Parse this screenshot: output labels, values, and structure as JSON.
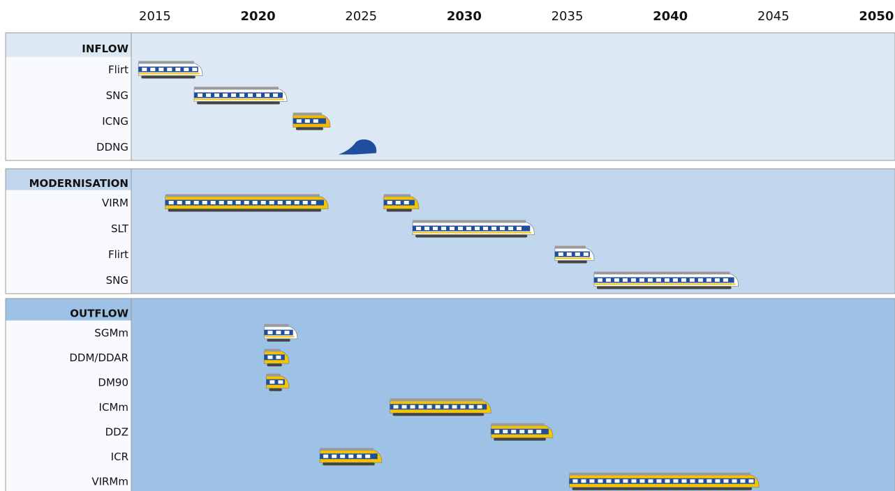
{
  "chart_data": {
    "type": "gantt",
    "xlim": [
      2013.85,
      2050.9
    ],
    "xticks": [
      2015,
      2020,
      2025,
      2030,
      2035,
      2040,
      2045,
      2050
    ],
    "sections": [
      {
        "name": "INFLOW",
        "color": "#dde8f5",
        "rows": [
          {
            "label": "Flirt",
            "color": "#ffffff",
            "bars": [
              {
                "start": 2014.2,
                "end": 2017.3
              }
            ]
          },
          {
            "label": "SNG",
            "color": "#ffffff",
            "bars": [
              {
                "start": 2016.9,
                "end": 2021.4
              }
            ]
          },
          {
            "label": "ICNG",
            "color": "#f5b800",
            "bars": [
              {
                "start": 2021.7,
                "end": 2023.5
              }
            ]
          },
          {
            "label": "DDNG",
            "color": "#1f4e9c",
            "bars": [
              {
                "start": 2023.9,
                "end": 2025.8
              }
            ]
          }
        ]
      },
      {
        "name": "MODERNISATION",
        "color": "#c0d7ee",
        "rows": [
          {
            "label": "VIRM",
            "color": "#f5c400",
            "bars": [
              {
                "start": 2015.5,
                "end": 2023.4
              },
              {
                "start": 2026.1,
                "end": 2027.8
              }
            ]
          },
          {
            "label": "SLT",
            "color": "#ffffff",
            "bars": [
              {
                "start": 2027.5,
                "end": 2033.4
              }
            ]
          },
          {
            "label": "Flirt",
            "color": "#ffffff",
            "bars": [
              {
                "start": 2034.4,
                "end": 2036.3
              }
            ]
          },
          {
            "label": "SNG",
            "color": "#ffffff",
            "bars": [
              {
                "start": 2036.3,
                "end": 2043.3
              }
            ]
          }
        ]
      },
      {
        "name": "OUTFLOW",
        "color": "#9dc2e5",
        "rows": [
          {
            "label": "SGMm",
            "color": "#ffffff",
            "bars": [
              {
                "start": 2020.3,
                "end": 2021.9
              }
            ]
          },
          {
            "label": "DDM/DDAR",
            "color": "#f5c400",
            "bars": [
              {
                "start": 2020.3,
                "end": 2021.5
              }
            ]
          },
          {
            "label": "DM90",
            "color": "#f5c400",
            "bars": [
              {
                "start": 2020.4,
                "end": 2021.5
              }
            ]
          },
          {
            "label": "ICMm",
            "color": "#f5c400",
            "bars": [
              {
                "start": 2026.4,
                "end": 2031.3
              }
            ]
          },
          {
            "label": "DDZ",
            "color": "#f5c400",
            "bars": [
              {
                "start": 2031.3,
                "end": 2034.3
              }
            ]
          },
          {
            "label": "ICR",
            "color": "#f5c400",
            "bars": [
              {
                "start": 2023.0,
                "end": 2026.0
              }
            ]
          },
          {
            "label": "VIRMm",
            "color": "#f5c400",
            "bars": [
              {
                "start": 2035.1,
                "end": 2044.3
              }
            ]
          }
        ]
      }
    ]
  }
}
